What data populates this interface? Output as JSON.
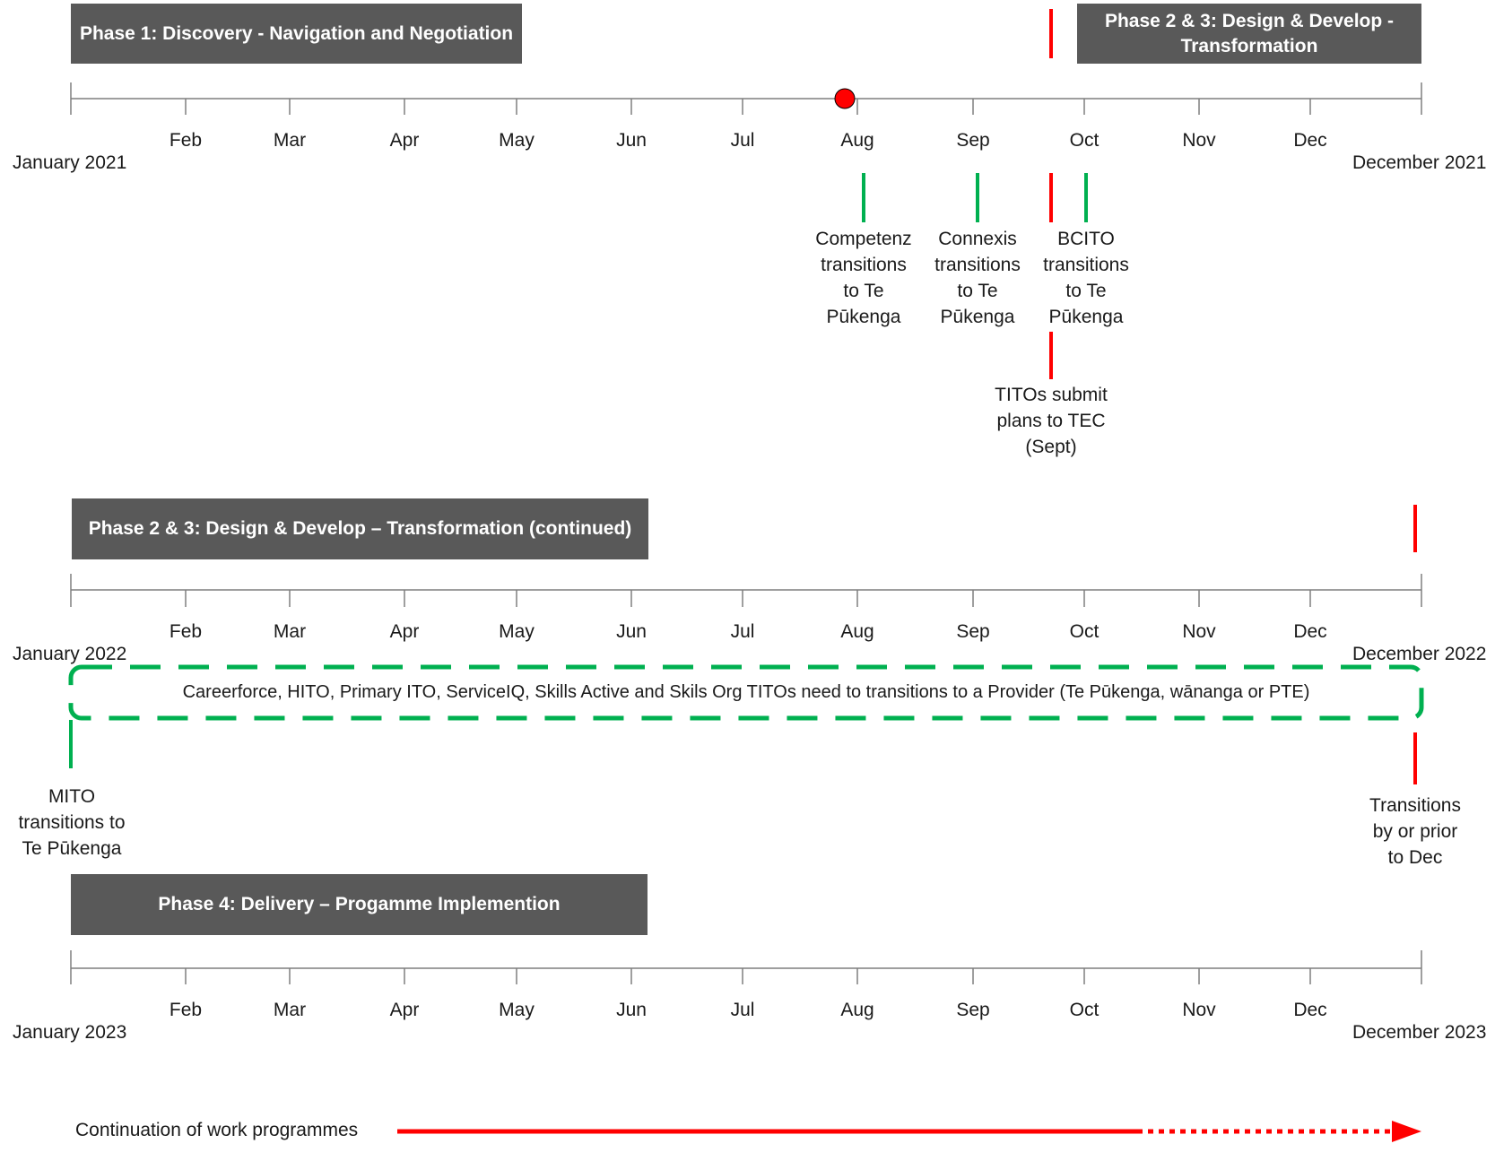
{
  "timelines": [
    {
      "start_label": "January 2021",
      "end_label": "December 2021",
      "months": [
        "Feb",
        "Mar",
        "Apr",
        "May",
        "Jun",
        "Jul",
        "Aug",
        "Sep",
        "Oct",
        "Nov",
        "Dec"
      ]
    },
    {
      "start_label": "January 2022",
      "end_label": "December 2022",
      "months": [
        "Feb",
        "Mar",
        "Apr",
        "May",
        "Jun",
        "Jul",
        "Aug",
        "Sep",
        "Oct",
        "Nov",
        "Dec"
      ]
    },
    {
      "start_label": "January 2023",
      "end_label": "December 2023",
      "months": [
        "Feb",
        "Mar",
        "Apr",
        "May",
        "Jun",
        "Jul",
        "Aug",
        "Sep",
        "Oct",
        "Nov",
        "Dec"
      ]
    }
  ],
  "phases": {
    "phase1": "Phase 1: Discovery - Navigation and Negotiation",
    "phase23_line1": "Phase 2 & 3: Design & Develop -",
    "phase23_line2": "Transformation",
    "phase23_cont": "Phase 2 & 3: Design & Develop – Transformation (continued)",
    "phase4": "Phase 4: Delivery – Progamme  Implemention"
  },
  "events": {
    "competenz": [
      "Competenz",
      "transitions",
      "to Te",
      "Pūkenga"
    ],
    "connexis": [
      "Connexis",
      "transitions",
      "to Te",
      "Pūkenga"
    ],
    "bcito": [
      "BCITO",
      "transitions",
      "to Te",
      "Pūkenga"
    ],
    "titos": [
      "TITOs submit",
      "plans to TEC",
      "(Sept)"
    ],
    "mito": [
      "MITO",
      "transitions to",
      "Te Pūkenga"
    ],
    "transitions_dec": [
      "Transitions",
      "by or prior",
      "to Dec"
    ]
  },
  "band_text": "Careerforce, HITO, Primary ITO, ServiceIQ, Skills Active and Skils Org TITOs need to transitions to a Provider (Te Pūkenga, wānanga or PTE)",
  "legend": {
    "continuation": "Continuation of work programmes"
  },
  "colors": {
    "green": "#00b050",
    "red": "#ff0000",
    "phase_bg": "#595959",
    "axis": "#7f7f7f"
  }
}
